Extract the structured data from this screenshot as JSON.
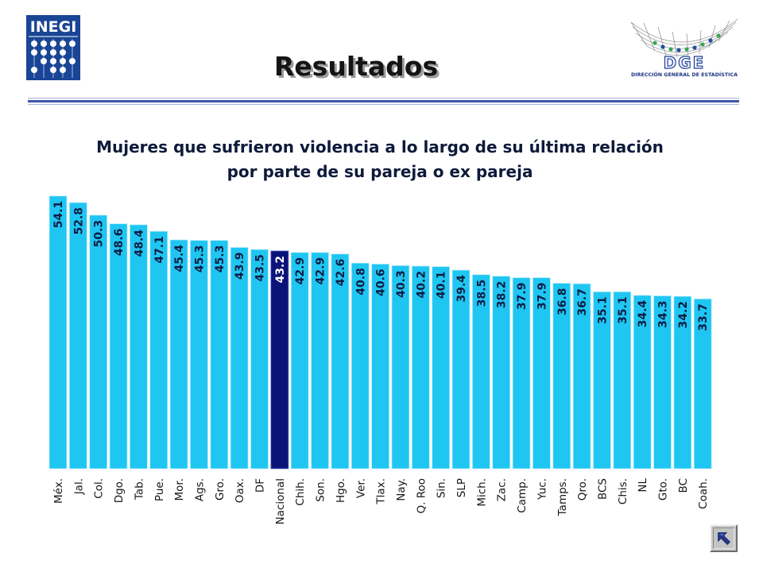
{
  "header": {
    "title": "Resultados",
    "logo_left": {
      "text": "INEGI"
    },
    "logo_right": {
      "text": "DGE",
      "subtitle": "DIRECCIÓN GENERAL DE ESTADÍSTICA"
    }
  },
  "nav": {
    "return_icon": "arrow-up-left-icon"
  },
  "colors": {
    "bar": "#1fc6f2",
    "bar_edge": "#bdeefb",
    "highlight_bar": "#0a1478",
    "highlight_edge": "#5a6fd0",
    "value_label": "#0f1c44",
    "highlight_value_label": "#ffffff",
    "category_label": "#151515"
  },
  "chart_data": {
    "type": "bar",
    "title_lines": [
      "Mujeres que sufrieron violencia a lo largo de su última relación",
      "por parte de su pareja o ex pareja"
    ],
    "xlabel": "",
    "ylabel": "",
    "ylim": [
      0,
      55
    ],
    "highlight": "Nacional",
    "categories": [
      "Méx.",
      "Jal.",
      "Col.",
      "Dgo.",
      "Tab.",
      "Pue.",
      "Mor.",
      "Ags.",
      "Gro.",
      "Oax.",
      "DF",
      "Nacional",
      "Chih.",
      "Son.",
      "Hgo.",
      "Ver.",
      "Tlax.",
      "Nay.",
      "Q. Roo",
      "Sin.",
      "SLP",
      "Mich.",
      "Zac.",
      "Camp.",
      "Yuc.",
      "Tamps.",
      "Qro.",
      "BCS",
      "Chis.",
      "NL",
      "Gto.",
      "BC",
      "Coah."
    ],
    "values": [
      54.1,
      52.8,
      50.3,
      48.6,
      48.4,
      47.1,
      45.4,
      45.3,
      45.3,
      43.9,
      43.5,
      43.2,
      42.9,
      42.9,
      42.6,
      40.8,
      40.6,
      40.3,
      40.2,
      40.1,
      39.4,
      38.5,
      38.2,
      37.9,
      37.9,
      36.8,
      36.7,
      35.1,
      35.1,
      34.4,
      34.3,
      34.2,
      33.7
    ]
  }
}
